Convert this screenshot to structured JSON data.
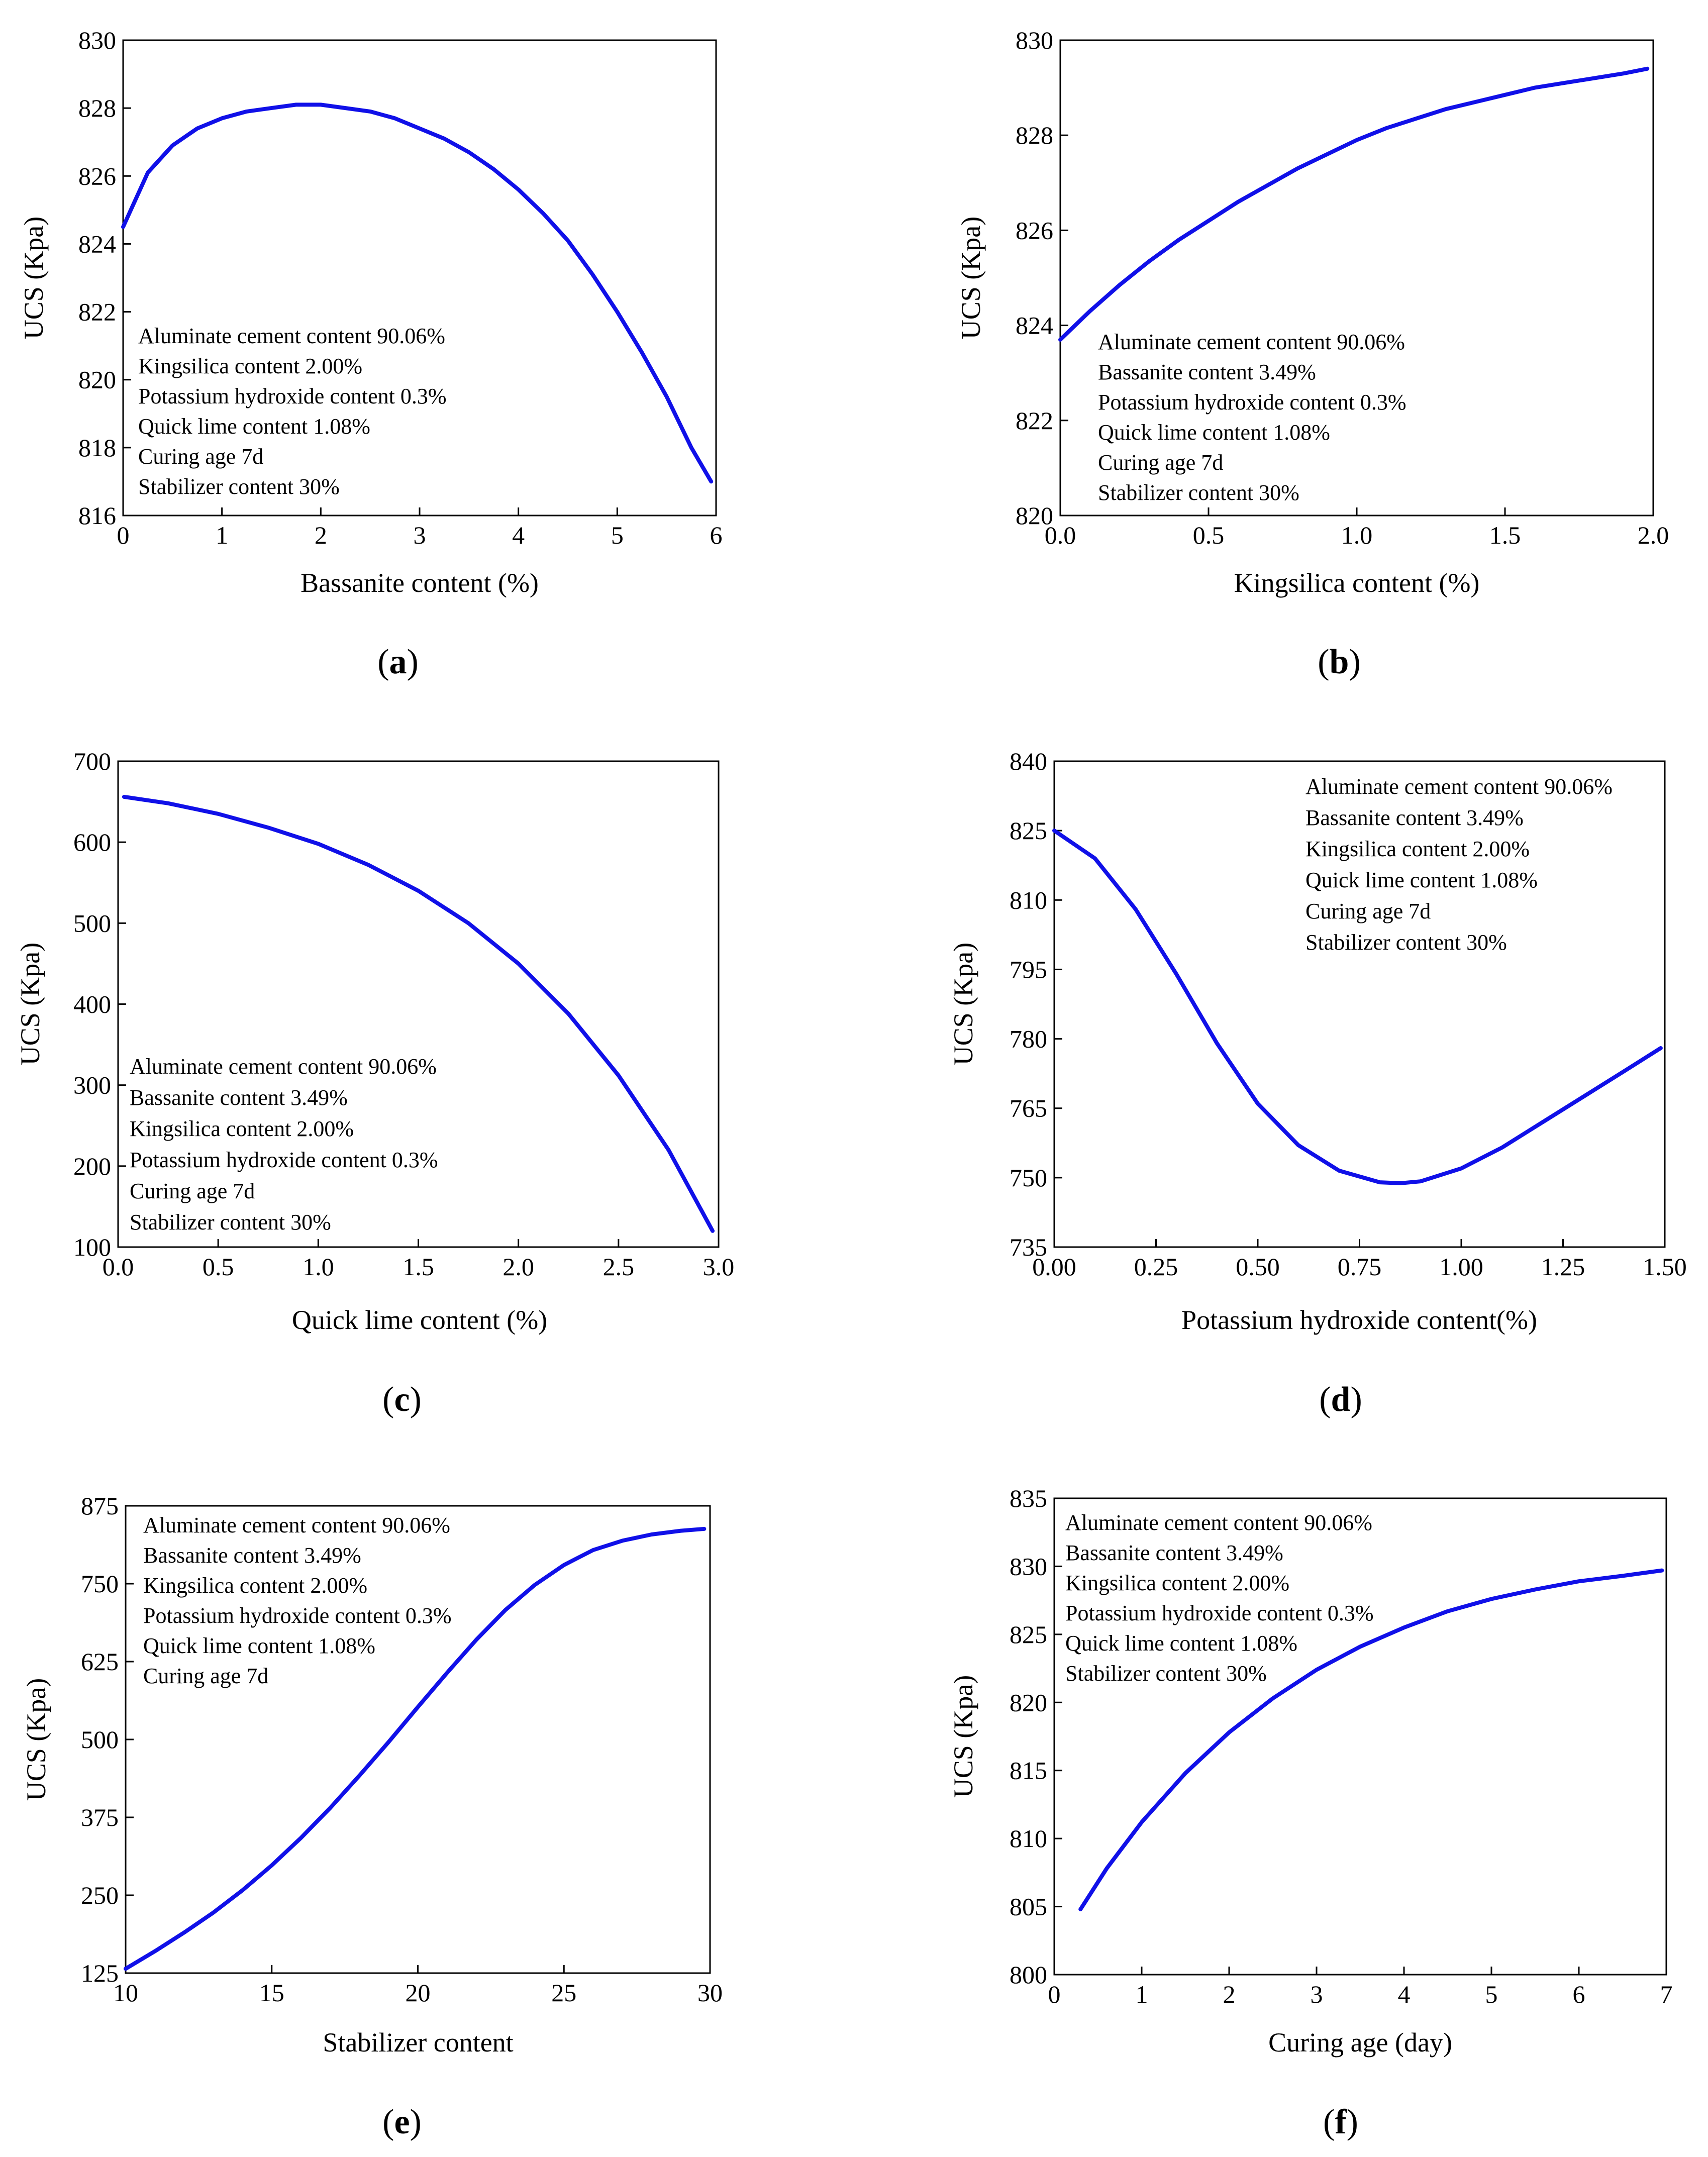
{
  "figure": {
    "line_color": "#1010e8",
    "axis_color": "#000000"
  },
  "chart_data": [
    {
      "id": "a",
      "panel_label": [
        "(",
        "a",
        ")"
      ],
      "type": "line",
      "xlabel": "Bassanite content (%)",
      "ylabel": "UCS (Kpa)",
      "xlim": [
        0,
        6
      ],
      "ylim": [
        816,
        830
      ],
      "xticks": [
        0,
        1,
        2,
        3,
        4,
        5,
        6
      ],
      "xtick_labels": [
        "0",
        "1",
        "2",
        "3",
        "4",
        "5",
        "6"
      ],
      "yticks": [
        816,
        818,
        820,
        822,
        824,
        826,
        828,
        830
      ],
      "ytick_labels": [
        "816",
        "818",
        "820",
        "822",
        "824",
        "826",
        "828",
        "830"
      ],
      "annotations": [
        "Aluminate cement content 90.06%",
        "Kingsilica content 2.00%",
        "Potassium hydroxide content 0.3%",
        "Quick lime content 1.08%",
        "Curing age 7d",
        "Stabilizer content 30%"
      ],
      "annotation_position": "bottom-left",
      "series": [
        {
          "name": "UCS",
          "x": [
            0,
            0.25,
            0.5,
            0.75,
            1.0,
            1.25,
            1.5,
            1.75,
            2.0,
            2.25,
            2.5,
            2.75,
            3.0,
            3.25,
            3.5,
            3.75,
            4.0,
            4.25,
            4.5,
            4.75,
            5.0,
            5.25,
            5.5,
            5.75,
            5.95
          ],
          "y": [
            824.5,
            826.1,
            826.9,
            827.4,
            827.7,
            827.9,
            828.0,
            828.1,
            828.1,
            828.0,
            827.9,
            827.7,
            827.4,
            827.1,
            826.7,
            826.2,
            825.6,
            824.9,
            824.1,
            823.1,
            822.0,
            820.8,
            819.5,
            818.0,
            817.0
          ]
        }
      ]
    },
    {
      "id": "b",
      "panel_label": [
        "(",
        "b",
        ")"
      ],
      "type": "line",
      "xlabel": "Kingsilica content (%)",
      "ylabel": "UCS (Kpa)",
      "xlim": [
        0,
        2
      ],
      "ylim": [
        820,
        830
      ],
      "xticks": [
        0,
        0.5,
        1,
        1.5,
        2
      ],
      "xtick_labels": [
        "0.0",
        "0.5",
        "1.0",
        "1.5",
        "2.0"
      ],
      "yticks": [
        820,
        822,
        824,
        826,
        828,
        830
      ],
      "ytick_labels": [
        "820",
        "822",
        "824",
        "826",
        "828",
        "830"
      ],
      "annotations": [
        "Aluminate cement content 90.06%",
        "Bassanite content 3.49%",
        "Potassium hydroxide content 0.3%",
        "Quick lime content 1.08%",
        "Curing age 7d",
        "Stabilizer content 30%"
      ],
      "annotation_position": "bottom-left",
      "series": [
        {
          "name": "UCS",
          "x": [
            0,
            0.1,
            0.2,
            0.3,
            0.4,
            0.5,
            0.6,
            0.7,
            0.8,
            0.9,
            1.0,
            1.1,
            1.2,
            1.3,
            1.4,
            1.5,
            1.6,
            1.7,
            1.8,
            1.9,
            1.98
          ],
          "y": [
            823.7,
            824.3,
            824.85,
            825.35,
            825.8,
            826.2,
            826.6,
            826.95,
            827.3,
            827.6,
            827.9,
            828.15,
            828.35,
            828.55,
            828.7,
            828.85,
            829.0,
            829.1,
            829.2,
            829.3,
            829.4
          ]
        }
      ]
    },
    {
      "id": "c",
      "panel_label": [
        "(",
        "c",
        ")"
      ],
      "type": "line",
      "xlabel": "Quick lime content (%)",
      "ylabel": "UCS (Kpa)",
      "xlim": [
        0,
        3
      ],
      "ylim": [
        100,
        700
      ],
      "xticks": [
        0,
        0.5,
        1,
        1.5,
        2,
        2.5,
        3
      ],
      "xtick_labels": [
        "0.0",
        "0.5",
        "1.0",
        "1.5",
        "2.0",
        "2.5",
        "3.0"
      ],
      "yticks": [
        100,
        200,
        300,
        400,
        500,
        600,
        700
      ],
      "ytick_labels": [
        "100",
        "200",
        "300",
        "400",
        "500",
        "600",
        "700"
      ],
      "annotations": [
        "Aluminate cement content 90.06%",
        "Bassanite content 3.49%",
        "Kingsilica content 2.00%",
        "Potassium hydroxide content 0.3%",
        "Curing age 7d",
        "Stabilizer content 30%"
      ],
      "annotation_position": "bottom-left",
      "series": [
        {
          "name": "UCS",
          "x": [
            0.03,
            0.25,
            0.5,
            0.75,
            1.0,
            1.25,
            1.5,
            1.75,
            2.0,
            2.25,
            2.5,
            2.75,
            2.97
          ],
          "y": [
            656,
            648,
            635,
            618,
            598,
            572,
            540,
            500,
            450,
            388,
            312,
            220,
            120
          ]
        }
      ]
    },
    {
      "id": "d",
      "panel_label": [
        "(",
        "d",
        ")"
      ],
      "type": "line",
      "xlabel": "Potassium hydroxide content(%)",
      "ylabel": "UCS (Kpa)",
      "xlim": [
        0,
        1.5
      ],
      "ylim": [
        735,
        840
      ],
      "xticks": [
        0,
        0.25,
        0.5,
        0.75,
        1.0,
        1.25,
        1.5
      ],
      "xtick_labels": [
        "0.00",
        "0.25",
        "0.50",
        "0.75",
        "1.00",
        "1.25",
        "1.50"
      ],
      "yticks": [
        735,
        750,
        765,
        780,
        795,
        810,
        825,
        840
      ],
      "ytick_labels": [
        "735",
        "750",
        "765",
        "780",
        "795",
        "810",
        "825",
        "840"
      ],
      "annotations": [
        "Aluminate cement content 90.06%",
        "Bassanite content 3.49%",
        "Kingsilica content 2.00%",
        "Quick lime content 1.08%",
        "Curing age 7d",
        "Stabilizer content 30%"
      ],
      "annotation_position": "top-right",
      "series": [
        {
          "name": "UCS",
          "x": [
            0,
            0.1,
            0.2,
            0.3,
            0.4,
            0.5,
            0.6,
            0.7,
            0.8,
            0.85,
            0.9,
            1.0,
            1.1,
            1.2,
            1.3,
            1.4,
            1.49
          ],
          "y": [
            825,
            819,
            808,
            794,
            779,
            766,
            757,
            751.5,
            749,
            748.8,
            749.2,
            752,
            756.5,
            762,
            767.5,
            773,
            778
          ]
        }
      ]
    },
    {
      "id": "e",
      "panel_label": [
        "(",
        "e",
        ")"
      ],
      "type": "line",
      "xlabel": "Stabilizer content",
      "ylabel": "UCS (Kpa)",
      "xlim": [
        10,
        30
      ],
      "ylim": [
        125,
        875
      ],
      "xticks": [
        10,
        15,
        20,
        25,
        30
      ],
      "xtick_labels": [
        "10",
        "15",
        "20",
        "25",
        "30"
      ],
      "yticks": [
        125,
        250,
        375,
        500,
        625,
        750,
        875
      ],
      "ytick_labels": [
        "125",
        "250",
        "375",
        "500",
        "625",
        "750",
        "875"
      ],
      "annotations": [
        "Aluminate cement content 90.06%",
        "Bassanite content 3.49%",
        "Kingsilica content 2.00%",
        "Potassium hydroxide content 0.3%",
        "Quick lime content 1.08%",
        "Curing age 7d"
      ],
      "annotation_position": "top-left",
      "series": [
        {
          "name": "UCS",
          "x": [
            10,
            11,
            12,
            13,
            14,
            15,
            16,
            17,
            18,
            19,
            20,
            21,
            22,
            23,
            24,
            25,
            26,
            27,
            28,
            29,
            29.8
          ],
          "y": [
            132,
            160,
            190,
            222,
            258,
            298,
            342,
            390,
            442,
            496,
            552,
            607,
            660,
            708,
            748,
            780,
            804,
            819,
            829,
            835,
            838
          ]
        }
      ]
    },
    {
      "id": "f",
      "panel_label": [
        "(",
        "f",
        ")"
      ],
      "type": "line",
      "xlabel": "Curing age (day)",
      "ylabel": "UCS (Kpa)",
      "xlim": [
        0,
        7
      ],
      "ylim": [
        800,
        835
      ],
      "xticks": [
        0,
        1,
        2,
        3,
        4,
        5,
        6,
        7
      ],
      "xtick_labels": [
        "0",
        "1",
        "2",
        "3",
        "4",
        "5",
        "6",
        "7"
      ],
      "yticks": [
        800,
        805,
        810,
        815,
        820,
        825,
        830,
        835
      ],
      "ytick_labels": [
        "800",
        "805",
        "810",
        "815",
        "820",
        "825",
        "830",
        "835"
      ],
      "annotations": [
        "Aluminate cement content 90.06%",
        "Bassanite content 3.49%",
        "Kingsilica content 2.00%",
        "Potassium hydroxide content 0.3%",
        "Quick lime content 1.08%",
        "Stabilizer content 30%"
      ],
      "annotation_position": "top-left",
      "series": [
        {
          "name": "UCS",
          "x": [
            0.3,
            0.6,
            1.0,
            1.5,
            2.0,
            2.5,
            3.0,
            3.5,
            4.0,
            4.5,
            5.0,
            5.5,
            6.0,
            6.5,
            6.95
          ],
          "y": [
            804.8,
            807.8,
            811.2,
            814.8,
            817.8,
            820.3,
            822.4,
            824.1,
            825.5,
            826.7,
            827.6,
            828.3,
            828.9,
            829.3,
            829.7
          ]
        }
      ]
    }
  ]
}
